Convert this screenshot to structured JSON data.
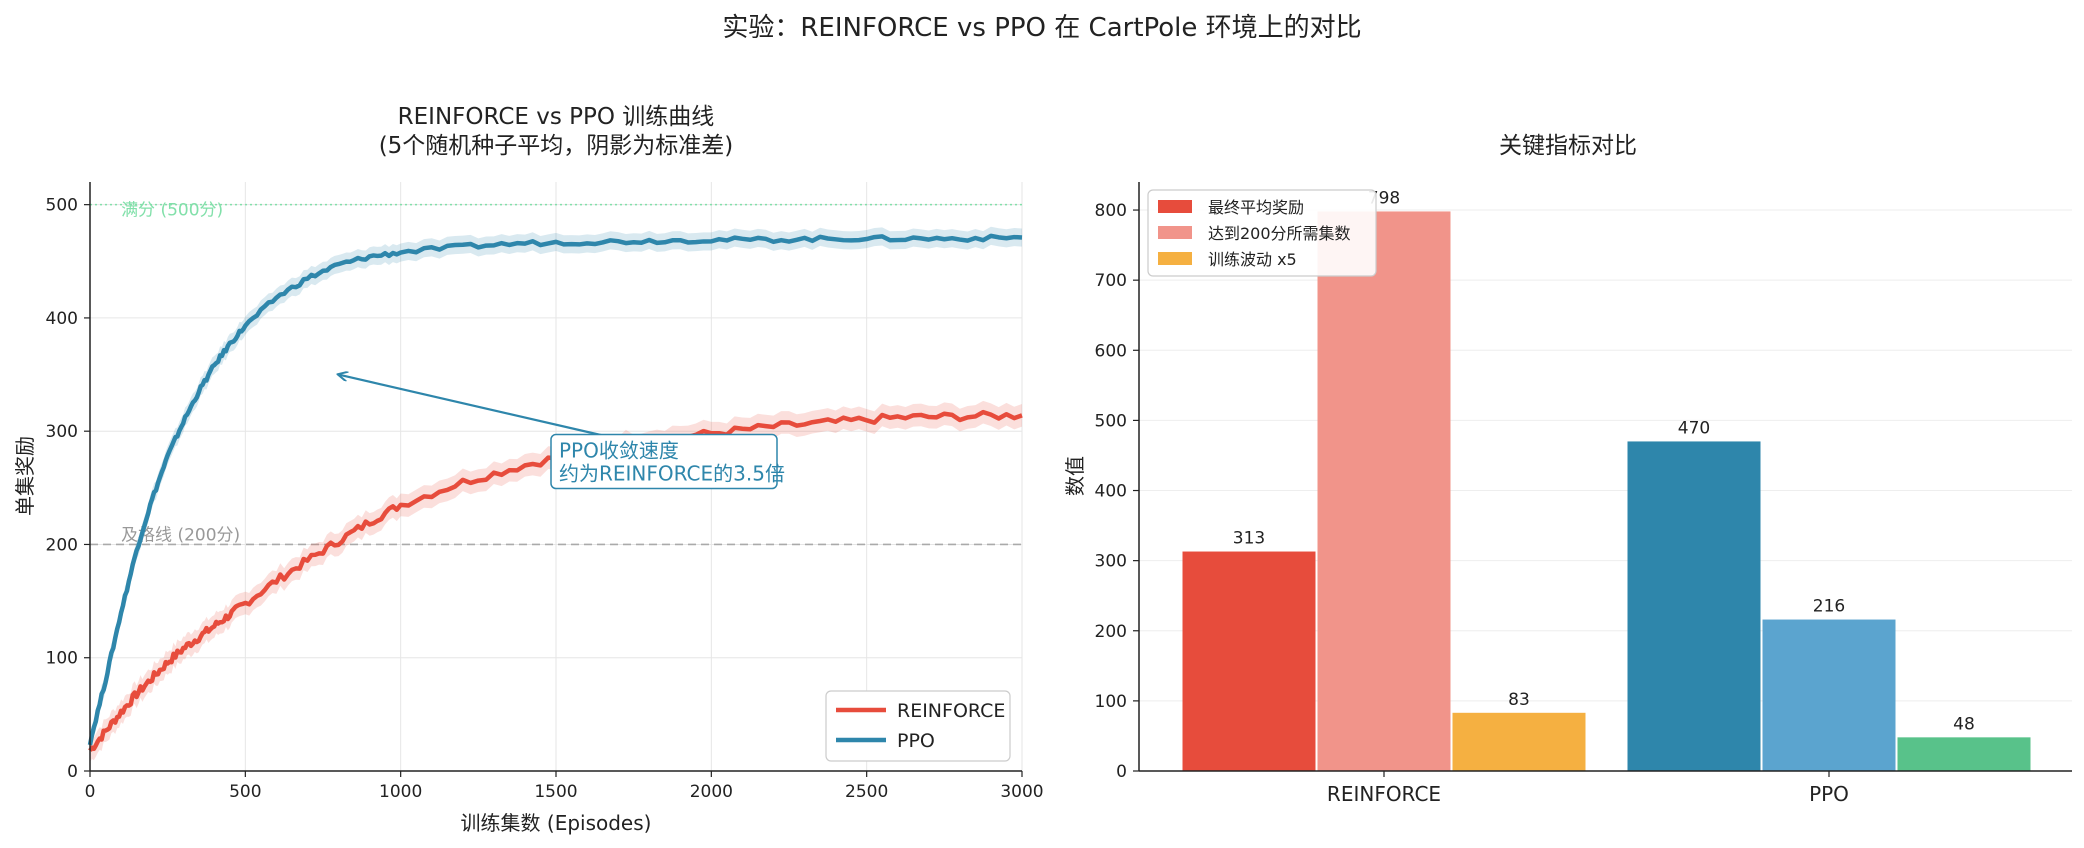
{
  "suptitle": "实验：REINFORCE vs PPO 在 CartPole 环境上的对比",
  "left_chart": {
    "title_line1": "REINFORCE vs PPO 训练曲线",
    "title_line2": "(5个随机种子平均，阴影为标准差)",
    "xlabel": "训练集数 (Episodes)",
    "ylabel": "单集奖励",
    "max_line_label": "满分 (500分)",
    "pass_line_label": "及格线 (200分)",
    "annotation_line1": "PPO收敛速度",
    "annotation_line2": "约为REINFORCE的3.5倍",
    "x_ticks": [
      "0",
      "500",
      "1000",
      "1500",
      "2000",
      "2500",
      "3000"
    ],
    "y_ticks": [
      "0",
      "100",
      "200",
      "300",
      "400",
      "500"
    ],
    "legend": [
      "REINFORCE",
      "PPO"
    ]
  },
  "right_chart": {
    "title": "关键指标对比",
    "ylabel": "数值",
    "y_ticks": [
      "0",
      "100",
      "200",
      "300",
      "400",
      "500",
      "600",
      "700",
      "800"
    ],
    "legend": [
      "最终平均奖励",
      "达到200分所需集数",
      "训练波动 x5"
    ],
    "categories": [
      "REINFORCE",
      "PPO"
    ],
    "bar_labels": {
      "REINFORCE": [
        "313",
        "798",
        "83"
      ],
      "PPO": [
        "470",
        "216",
        "48"
      ]
    }
  },
  "colors": {
    "reinforce": "#e74c3c",
    "reinforce_light": "#f1948a",
    "ppo": "#2e86ab",
    "ppo_light": "#5ba4cf",
    "orange": "#f5b041",
    "green": "#58c28a",
    "max_line": "#82e0aa",
    "pass_line": "#aaaaaa",
    "annotation": "#2e86ab"
  },
  "chart_data": [
    {
      "type": "line",
      "title": "REINFORCE vs PPO 训练曲线 (5个随机种子平均，阴影为标准差)",
      "xlabel": "训练集数 (Episodes)",
      "ylabel": "单集奖励",
      "xlim": [
        0,
        3000
      ],
      "ylim": [
        0,
        520
      ],
      "grid": true,
      "legend_position": "lower-right",
      "x": [
        0,
        50,
        100,
        150,
        200,
        250,
        300,
        350,
        400,
        450,
        500,
        600,
        700,
        800,
        900,
        1000,
        1200,
        1400,
        1600,
        1800,
        2000,
        2200,
        2400,
        2600,
        2800,
        3000
      ],
      "series": [
        {
          "name": "REINFORCE",
          "values": [
            18,
            35,
            52,
            68,
            82,
            96,
            108,
            118,
            128,
            138,
            148,
            168,
            186,
            203,
            220,
            235,
            255,
            270,
            283,
            292,
            298,
            304,
            308,
            312,
            313,
            314
          ],
          "std": 10
        },
        {
          "name": "PPO",
          "values": [
            25,
            80,
            140,
            195,
            240,
            278,
            308,
            335,
            358,
            377,
            393,
            418,
            435,
            447,
            454,
            458,
            463,
            466,
            467,
            468,
            469,
            469,
            470,
            470,
            470,
            471
          ],
          "std": 8
        }
      ],
      "reference_lines": [
        {
          "y": 500,
          "label": "满分 (500分)"
        },
        {
          "y": 200,
          "label": "及格线 (200分)"
        }
      ],
      "annotation": {
        "text": "PPO收敛速度 约为REINFORCE的3.5倍",
        "arrow_to": [
          800,
          350
        ],
        "text_at": [
          1500,
          260
        ]
      }
    },
    {
      "type": "bar",
      "title": "关键指标对比",
      "ylabel": "数值",
      "ylim": [
        0,
        840
      ],
      "grid": true,
      "legend_position": "top-left",
      "categories": [
        "REINFORCE",
        "PPO"
      ],
      "series": [
        {
          "name": "最终平均奖励",
          "values": [
            313,
            470
          ]
        },
        {
          "name": "达到200分所需集数",
          "values": [
            798,
            216
          ]
        },
        {
          "name": "训练波动 x5",
          "values": [
            83,
            48
          ]
        }
      ]
    }
  ]
}
